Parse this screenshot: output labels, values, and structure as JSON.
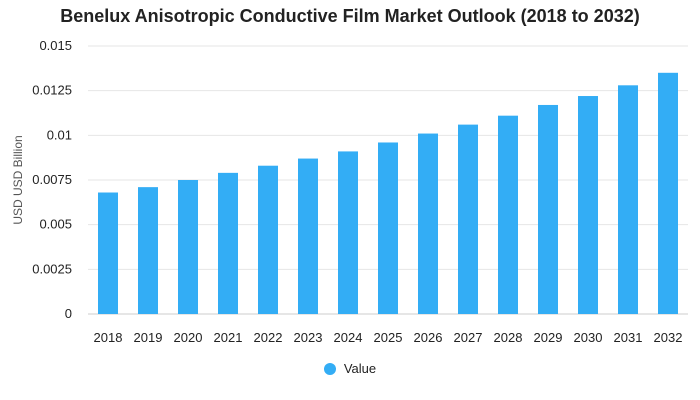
{
  "chart_data": {
    "type": "bar",
    "title": "Benelux Anisotropic Conductive Film Market Outlook (2018 to 2032)",
    "xlabel": "",
    "ylabel": "USD USD Billion",
    "categories": [
      "2018",
      "2019",
      "2020",
      "2021",
      "2022",
      "2023",
      "2024",
      "2025",
      "2026",
      "2027",
      "2028",
      "2029",
      "2030",
      "2031",
      "2032"
    ],
    "series": [
      {
        "name": "Value",
        "color": "#33adf5",
        "values": [
          0.0068,
          0.0071,
          0.0075,
          0.0079,
          0.0083,
          0.0087,
          0.0091,
          0.0096,
          0.0101,
          0.0106,
          0.0111,
          0.0117,
          0.0122,
          0.0128,
          0.0135
        ]
      }
    ],
    "ylim": [
      0,
      0.015
    ],
    "yticks": [
      "0",
      "0.0025",
      "0.005",
      "0.0075",
      "0.01",
      "0.0125",
      "0.015"
    ],
    "grid": true,
    "legend_position": "bottom"
  }
}
